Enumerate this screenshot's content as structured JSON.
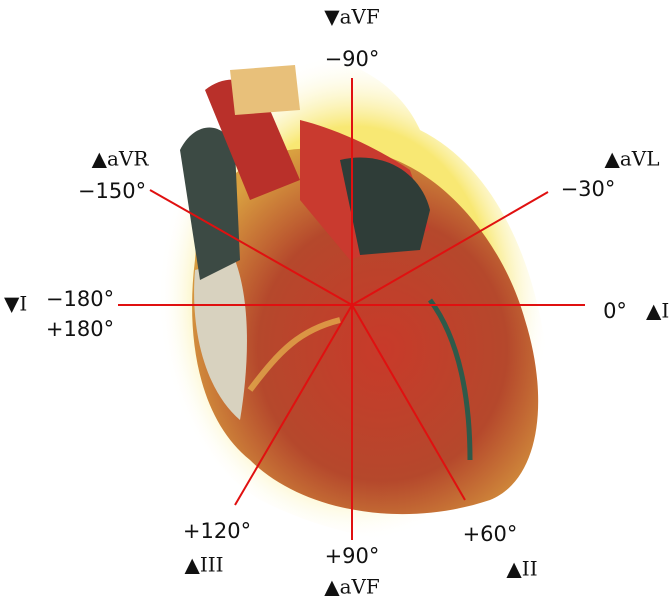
{
  "labels": [
    {
      "text": "▼aVF"
    },
    {
      "text": "−90°"
    },
    {
      "text": "▲aVR"
    },
    {
      "text": "−150°"
    },
    {
      "text": "▲aVL"
    },
    {
      "text": "−30°"
    },
    {
      "text": "▼I"
    },
    {
      "text": "−180°"
    },
    {
      "text": "+180°"
    },
    {
      "text": "0°"
    },
    {
      "text": "▲I"
    },
    {
      "text": "+120°"
    },
    {
      "text": "▲III"
    },
    {
      "text": "+90°"
    },
    {
      "text": "▲aVF"
    },
    {
      "text": "+60°"
    },
    {
      "text": "▲II"
    }
  ]
}
